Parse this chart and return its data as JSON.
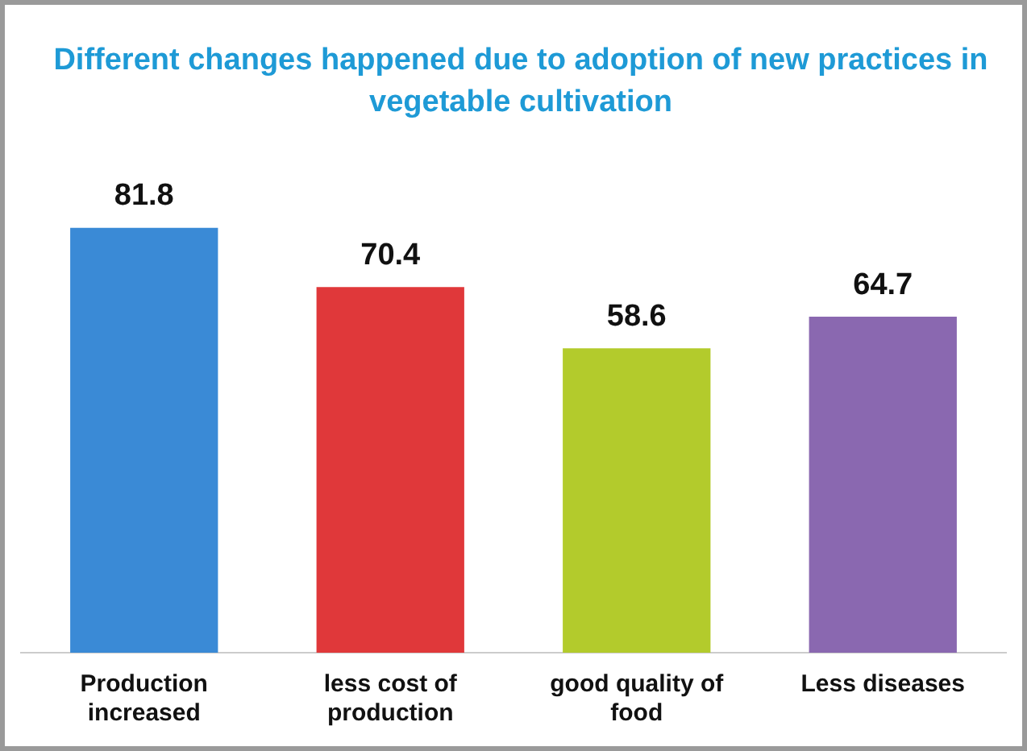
{
  "chart_data": {
    "type": "bar",
    "title": "Different changes happened due to adoption of  new practices in vegetable cultivation",
    "categories": [
      "Production increased",
      "less cost of production",
      "good quality of food",
      "Less diseases"
    ],
    "values": [
      81.8,
      70.4,
      58.6,
      64.7
    ],
    "colors": [
      "#3a8ad6",
      "#e0383a",
      "#b3cb2c",
      "#8a68b0"
    ],
    "data_labels": true,
    "grid": false,
    "legend": false
  }
}
